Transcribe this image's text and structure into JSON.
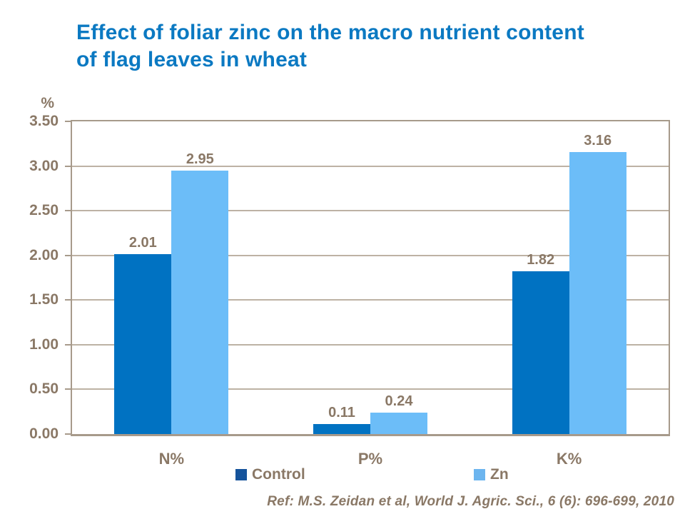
{
  "title": {
    "line1": "Effect of foliar zinc on the macro nutrient content",
    "line2": "of flag leaves in wheat"
  },
  "y_axis": {
    "unit_label": "%",
    "tick_labels": [
      "0.00",
      "0.50",
      "1.00",
      "1.50",
      "2.00",
      "2.50",
      "3.00",
      "3.50"
    ]
  },
  "reference": "Ref: M.S. Zeidan et al, World J. Agric. Sci., 6 (6): 696-699, 2010",
  "colors": {
    "background": "#FFFFFF",
    "title_text": "#0B79C2",
    "axis_text": "#8A7866",
    "axis_line": "#A79A8B",
    "gridline": "#BDB2A4",
    "control": "#0072C2",
    "zn": "#6CBDF8",
    "control_swatch": "#15539B",
    "zn_swatch": "#6CB5EF"
  },
  "chart_data": {
    "type": "bar",
    "title": "Effect of foliar zinc on the macro nutrient content of flag leaves in wheat",
    "categories": [
      "N%",
      "P%",
      "K%"
    ],
    "series": [
      {
        "name": "Control",
        "color": "#0072C2",
        "values": [
          2.01,
          0.11,
          1.82
        ]
      },
      {
        "name": "Zn",
        "color": "#6CBDF8",
        "values": [
          2.95,
          0.24,
          3.16
        ]
      }
    ],
    "xlabel": "",
    "ylabel": "%",
    "ylim": [
      0,
      3.5
    ],
    "ytick_step": 0.5,
    "grid": true,
    "legend_position": "bottom",
    "data_labels": true,
    "data_label_format": "0.00"
  }
}
